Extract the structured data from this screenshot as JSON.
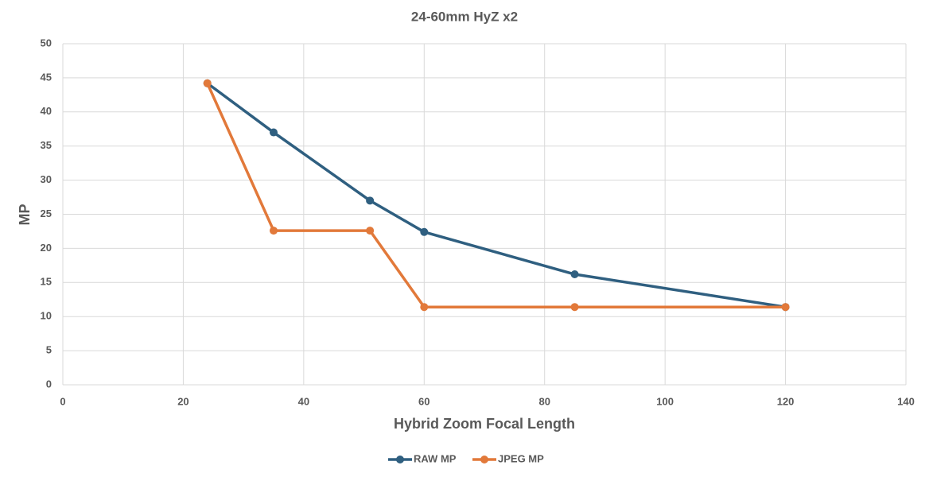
{
  "chart_data": {
    "type": "line",
    "title": "24-60mm HyZ x2",
    "x_label": "Hybrid Zoom Focal Length",
    "y_label": "MP",
    "x": [
      24,
      35,
      51,
      60,
      85,
      120
    ],
    "series": [
      {
        "name": "RAW MP",
        "color": "#2f5f80",
        "values": [
          44.2,
          37,
          27,
          22.4,
          16.2,
          11.4
        ]
      },
      {
        "name": "JPEG MP",
        "color": "#e2793a",
        "values": [
          44.2,
          22.6,
          22.6,
          11.4,
          11.4,
          11.4
        ]
      }
    ],
    "xlim": [
      0,
      140
    ],
    "xticks": [
      0,
      20,
      40,
      60,
      80,
      100,
      120,
      140
    ],
    "ylim": [
      0,
      50
    ],
    "yticks": [
      0,
      5,
      10,
      15,
      20,
      25,
      30,
      35,
      40,
      45,
      50
    ],
    "grid": true,
    "legend": "bottom"
  }
}
